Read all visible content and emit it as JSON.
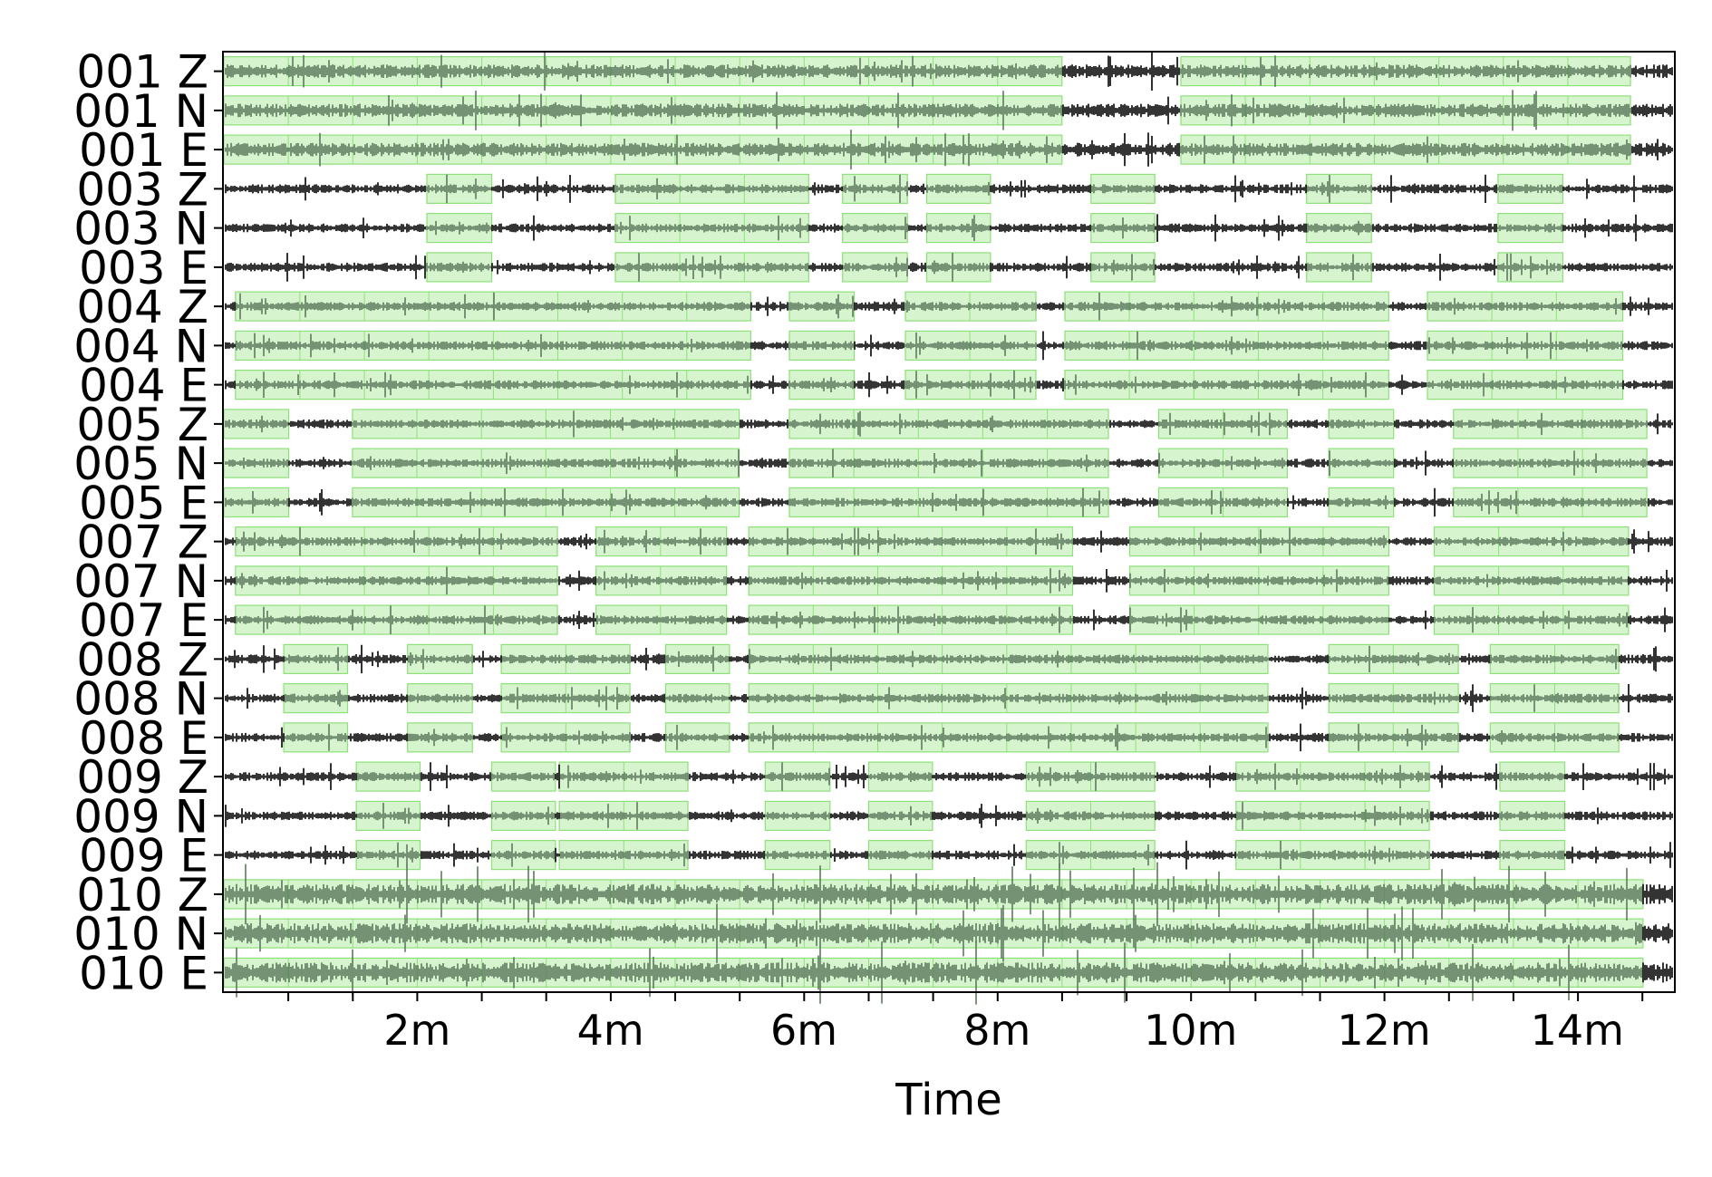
{
  "chart_data": {
    "type": "line",
    "xlabel": "Time",
    "x_unit": "minutes",
    "xlim": [
      0,
      15
    ],
    "x_tick_labels": [
      {
        "value": 2,
        "label": "2m"
      },
      {
        "value": 4,
        "label": "4m"
      },
      {
        "value": 6,
        "label": "6m"
      },
      {
        "value": 8,
        "label": "8m"
      },
      {
        "value": 10,
        "label": "10m"
      },
      {
        "value": 12,
        "label": "12m"
      },
      {
        "value": 14,
        "label": "14m"
      }
    ],
    "minor_tick_step": 0.667,
    "colors": {
      "trace": "#000000",
      "trace_in_window": "#5e7a5e",
      "window_fill": "#d6f5cf",
      "window_edge": "#8ee07a",
      "frame": "#000000"
    },
    "stations": [
      {
        "id": "001",
        "windows": [
          [
            0,
            8.67
          ],
          [
            9.9,
            14.55
          ]
        ]
      },
      {
        "id": "003",
        "windows": [
          [
            2.1,
            2.77
          ],
          [
            4.05,
            6.05
          ],
          [
            6.4,
            7.07
          ],
          [
            7.27,
            7.93
          ],
          [
            8.97,
            9.63
          ],
          [
            11.2,
            11.87
          ],
          [
            13.18,
            13.85
          ]
        ]
      },
      {
        "id": "004",
        "windows": [
          [
            0.12,
            5.45
          ],
          [
            5.85,
            6.52
          ],
          [
            7.05,
            8.4
          ],
          [
            8.7,
            12.05
          ],
          [
            12.45,
            14.47
          ]
        ]
      },
      {
        "id": "005",
        "windows": [
          [
            0,
            0.67
          ],
          [
            1.33,
            5.33
          ],
          [
            5.85,
            9.15
          ],
          [
            9.67,
            11.0
          ],
          [
            11.43,
            12.1
          ],
          [
            12.72,
            14.72
          ]
        ]
      },
      {
        "id": "007",
        "windows": [
          [
            0.12,
            3.45
          ],
          [
            3.85,
            5.2
          ],
          [
            5.43,
            8.78
          ],
          [
            9.37,
            12.05
          ],
          [
            12.52,
            14.53
          ]
        ]
      },
      {
        "id": "008",
        "windows": [
          [
            0.62,
            1.28
          ],
          [
            1.9,
            2.57
          ],
          [
            2.87,
            4.2
          ],
          [
            4.57,
            5.23
          ],
          [
            5.43,
            10.8
          ],
          [
            11.43,
            12.77
          ],
          [
            13.1,
            14.43
          ]
        ]
      },
      {
        "id": "009",
        "windows": [
          [
            1.37,
            2.03
          ],
          [
            2.77,
            3.43
          ],
          [
            3.47,
            4.8
          ],
          [
            5.6,
            6.27
          ],
          [
            6.67,
            7.33
          ],
          [
            8.3,
            9.63
          ],
          [
            10.47,
            12.47
          ],
          [
            13.2,
            13.87
          ]
        ]
      },
      {
        "id": "010",
        "windows": [
          [
            0,
            14.68
          ]
        ]
      }
    ],
    "components": [
      "Z",
      "N",
      "E"
    ],
    "series": [
      {
        "name": "001 Z"
      },
      {
        "name": "001 N"
      },
      {
        "name": "001 E"
      },
      {
        "name": "003 Z"
      },
      {
        "name": "003 N"
      },
      {
        "name": "003 E"
      },
      {
        "name": "004 Z"
      },
      {
        "name": "004 N"
      },
      {
        "name": "004 E"
      },
      {
        "name": "005 Z"
      },
      {
        "name": "005 N"
      },
      {
        "name": "005 E"
      },
      {
        "name": "007 Z"
      },
      {
        "name": "007 N"
      },
      {
        "name": "007 E"
      },
      {
        "name": "008 Z"
      },
      {
        "name": "008 N"
      },
      {
        "name": "008 E"
      },
      {
        "name": "009 Z"
      },
      {
        "name": "009 N"
      },
      {
        "name": "009 E"
      },
      {
        "name": "010 Z"
      },
      {
        "name": "010 N"
      },
      {
        "name": "010 E"
      }
    ]
  }
}
